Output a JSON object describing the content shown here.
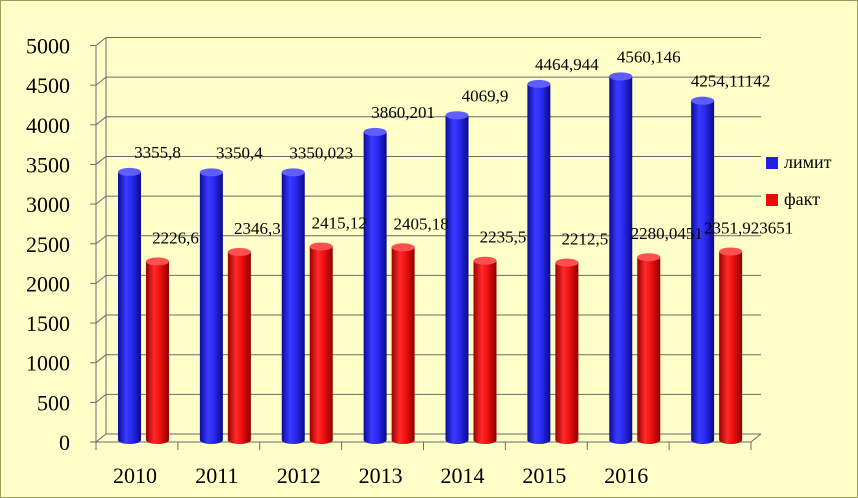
{
  "chart_data": {
    "type": "bar",
    "title": "",
    "xlabel": "",
    "ylabel": "",
    "ylim": [
      0,
      5000
    ],
    "yticks": [
      0,
      500,
      1000,
      1500,
      2000,
      2500,
      3000,
      3500,
      4000,
      4500,
      5000
    ],
    "categories": [
      "2010",
      "2011",
      "2012",
      "2013",
      "2014",
      "2015",
      "2016",
      ""
    ],
    "series": [
      {
        "name": "лимит",
        "color": "#1f1fe6",
        "values": [
          3355.8,
          3350.4,
          3350.023,
          3860.201,
          4069.9,
          4464.944,
          4560.146,
          4254.11142
        ],
        "labels": [
          "3355,8",
          "3350,4",
          "3350,023",
          "3860,201",
          "4069,9",
          "4464,944",
          "4560,146",
          "4254,11142"
        ]
      },
      {
        "name": "факт",
        "color": "#ee0a0a",
        "values": [
          2226.6,
          2346.3,
          2415.12,
          2405.18,
          2235.5,
          2212.5,
          2280.0451,
          2351.923651
        ],
        "labels": [
          "2226,6",
          "2346,3",
          "2415,12",
          "2405,18",
          "2235,5",
          "2212,5",
          "2280,0451",
          "2351,923651"
        ]
      }
    ],
    "legend_position": "right",
    "grid": true
  }
}
